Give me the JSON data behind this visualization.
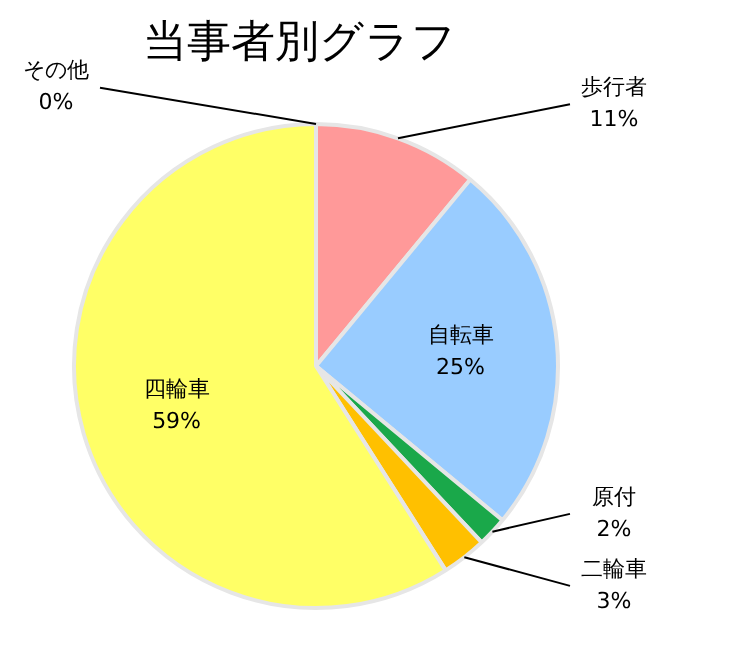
{
  "chart_data": {
    "type": "pie",
    "title": "当事者別グラフ",
    "categories": [
      "歩行者",
      "自転車",
      "原付",
      "二輪車",
      "四輪車",
      "その他"
    ],
    "values": [
      11,
      25,
      2,
      3,
      59,
      0
    ],
    "value_labels": [
      "11%",
      "25%",
      "2%",
      "3%",
      "59%",
      "0%"
    ],
    "colors": [
      "#ff9999",
      "#99ccff",
      "#1aa84a",
      "#ffc000",
      "#ffff66",
      "#d9d9d9"
    ],
    "legend": false
  }
}
